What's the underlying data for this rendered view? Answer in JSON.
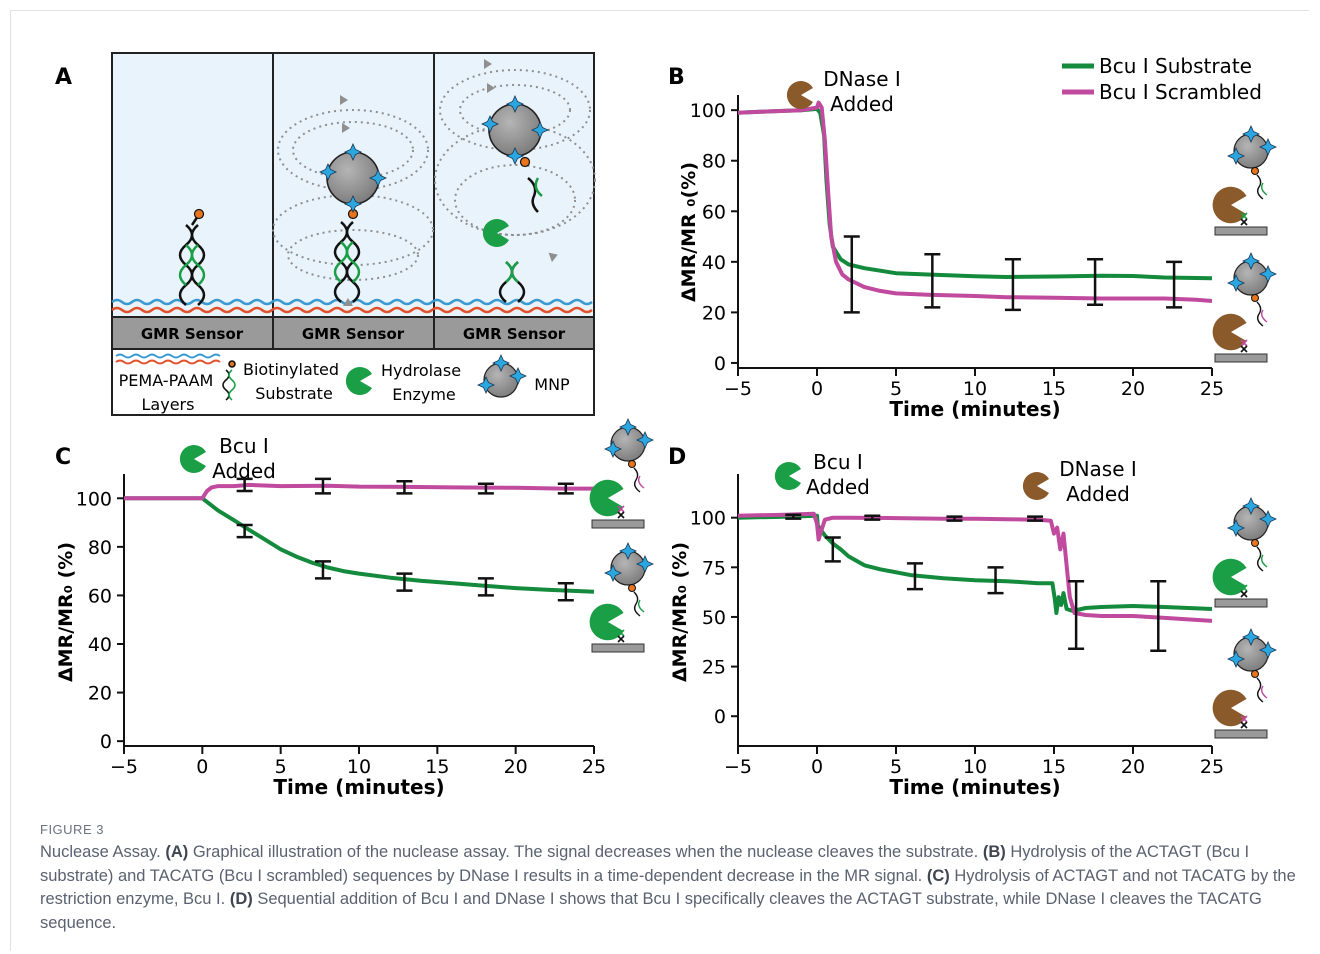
{
  "figure_label": "FIGURE 3",
  "caption": {
    "parts": [
      {
        "text": "Nuclease Assay. ",
        "bold": false
      },
      {
        "text": "(A)",
        "bold": true
      },
      {
        "text": " Graphical illustration of the nuclease assay. The signal decreases when the nuclease cleaves the substrate. ",
        "bold": false
      },
      {
        "text": "(B)",
        "bold": true
      },
      {
        "text": " Hydrolysis of the ACTAGT (Bcu I substrate) and TACATG (Bcu I scrambled) sequences by DNase I results in a time-dependent decrease in the MR signal. ",
        "bold": false
      },
      {
        "text": "(C)",
        "bold": true
      },
      {
        "text": " Hydrolysis of ACTAGT and not TACATG by the restriction enzyme, Bcu I. ",
        "bold": false
      },
      {
        "text": "(D)",
        "bold": true
      },
      {
        "text": " Sequential addition of Bcu I and DNase I shows that Bcu I specifically cleaves the ACTAGT substrate, while DNase I cleaves the TACATG sequence.",
        "bold": false
      }
    ]
  },
  "colors": {
    "substrate": "#138a3c",
    "scrambled": "#c04a9e",
    "dnase": "#8b5a2b",
    "bcu": "#1a9e46",
    "blue": "#2aa7e0",
    "orange": "#e8741e",
    "sensor": "#9a9a9a",
    "panel_bg": "#e8f3fc"
  },
  "panel_a": {
    "label": "A",
    "sensor_labels": [
      "GMR Sensor",
      "GMR Sensor",
      "GMR Sensor"
    ],
    "legend": {
      "layers": "PEMA-PAAM\nLayers",
      "substrate": "Biotinylated\nSubstrate",
      "enzyme": "Hydrolase\nEnzyme",
      "mnp": "MNP"
    },
    "icons": [
      "dna-strand-icon",
      "magnetic-nanoparticle-icon",
      "hydrolase-enzyme-icon",
      "field-line-icon"
    ]
  },
  "chart_data": [
    {
      "panel": "B",
      "type": "line",
      "xlabel": "Time (minutes)",
      "ylabel": "ΔMR/MR ₀(%)",
      "xlim": [
        -5,
        25
      ],
      "ylim": [
        -2,
        106
      ],
      "xticks": [
        -5,
        0,
        5,
        10,
        15,
        20,
        25
      ],
      "yticks": [
        0,
        20,
        40,
        60,
        80,
        100
      ],
      "legend": {
        "placement": "top-right",
        "entries": [
          "Bcu I Substrate",
          "Bcu I Scrambled"
        ]
      },
      "annotations": [
        {
          "text": "DNase I\nAdded",
          "x": 0
        }
      ],
      "series": [
        {
          "name": "Bcu I Substrate",
          "color_key": "substrate",
          "x": [
            -5,
            -3,
            -1,
            0,
            0.2,
            0.45,
            0.6,
            0.8,
            1,
            1.5,
            2,
            3,
            4,
            5,
            7,
            10,
            12,
            15,
            18,
            20,
            22,
            25
          ],
          "y": [
            99,
            99.5,
            100,
            100.5,
            99,
            90,
            72,
            55,
            46,
            41,
            39,
            37.5,
            36.5,
            35.5,
            35,
            34.3,
            34,
            34.2,
            34.5,
            34.4,
            33.8,
            33.5
          ]
        },
        {
          "name": "Bcu I Scrambled",
          "color_key": "scrambled",
          "x": [
            -5,
            -3,
            -1,
            0,
            0.1,
            0.3,
            0.5,
            0.7,
            0.9,
            1.2,
            1.6,
            2,
            3,
            4,
            5,
            7,
            10,
            12,
            15,
            18,
            20,
            22,
            24,
            25
          ],
          "y": [
            99,
            99.5,
            100,
            101,
            103,
            101,
            88,
            68,
            50,
            40,
            35,
            33,
            30,
            28.5,
            27.5,
            27,
            26.5,
            26,
            25.8,
            25.5,
            25.5,
            25.5,
            25,
            24.5
          ]
        }
      ],
      "error_bars": [
        {
          "x": 2.2,
          "low": 20,
          "high": 50
        },
        {
          "x": 7.3,
          "low": 22,
          "high": 43
        },
        {
          "x": 12.4,
          "low": 21,
          "high": 41
        },
        {
          "x": 17.6,
          "low": 23,
          "high": 41
        },
        {
          "x": 22.6,
          "low": 22,
          "high": 40
        }
      ]
    },
    {
      "panel": "C",
      "type": "line",
      "xlabel": "Time (minutes)",
      "ylabel": "ΔMR/MR₀ (%)",
      "xlim": [
        -5,
        25
      ],
      "ylim": [
        -2,
        110
      ],
      "xticks": [
        -5,
        0,
        5,
        10,
        15,
        20,
        25
      ],
      "yticks": [
        0,
        20,
        40,
        60,
        80,
        100
      ],
      "annotations": [
        {
          "text": "Bcu I\nAdded",
          "x": 0
        }
      ],
      "series": [
        {
          "name": "Bcu I Substrate",
          "color_key": "substrate",
          "x": [
            -5,
            -2,
            0,
            1,
            2,
            3,
            4,
            5,
            6,
            7,
            8,
            9,
            10,
            12,
            14,
            16,
            18,
            20,
            22,
            25
          ],
          "y": [
            100,
            100,
            100,
            95,
            91,
            87,
            83,
            79,
            76,
            73.5,
            71.5,
            70,
            69,
            67.3,
            66,
            65,
            64,
            63,
            62.3,
            61.5
          ]
        },
        {
          "name": "Bcu I Scrambled",
          "color_key": "scrambled",
          "x": [
            -5,
            -2,
            0,
            0.3,
            0.6,
            1,
            2,
            3,
            5,
            8,
            10,
            13,
            16,
            18,
            20,
            23,
            25
          ],
          "y": [
            100,
            100,
            100,
            103,
            104.5,
            105,
            105,
            105.5,
            105,
            105.2,
            104.8,
            104.7,
            104.5,
            104.4,
            104.3,
            104,
            104
          ]
        }
      ],
      "error_bars": [
        {
          "x": 2.7,
          "low": 84,
          "high": 89
        },
        {
          "x": 7.7,
          "low": 67,
          "high": 74
        },
        {
          "x": 12.9,
          "low": 62,
          "high": 69
        },
        {
          "x": 18.1,
          "low": 60,
          "high": 67
        },
        {
          "x": 23.2,
          "low": 58,
          "high": 65
        },
        {
          "x": 2.7,
          "low": 103,
          "high": 108
        },
        {
          "x": 7.7,
          "low": 102,
          "high": 108
        },
        {
          "x": 12.9,
          "low": 102,
          "high": 107
        },
        {
          "x": 18.1,
          "low": 102,
          "high": 106
        },
        {
          "x": 23.2,
          "low": 102,
          "high": 106
        }
      ]
    },
    {
      "panel": "D",
      "type": "line",
      "xlabel": "Time (minutes)",
      "ylabel": "ΔMR/MR₀ (%)",
      "xlim": [
        -5,
        25
      ],
      "ylim": [
        -15,
        122
      ],
      "xticks": [
        -5,
        0,
        5,
        10,
        15,
        20,
        25
      ],
      "yticks": [
        0,
        25,
        50,
        75,
        100
      ],
      "annotations": [
        {
          "text": "Bcu I\nAdded",
          "x": 0
        },
        {
          "text": "DNase I\nAdded",
          "x": 15
        }
      ],
      "series": [
        {
          "name": "Bcu I Substrate",
          "color_key": "substrate",
          "x": [
            -5,
            -2,
            0,
            0.05,
            0.5,
            1,
            1.5,
            2,
            3,
            4,
            6,
            8,
            10,
            12,
            14,
            14.9,
            15.05,
            15.15,
            15.3,
            15.45,
            15.6,
            15.8,
            16.2,
            17,
            18,
            20,
            22,
            25
          ],
          "y": [
            100,
            100.5,
            101,
            96,
            91,
            87,
            84,
            80.5,
            76,
            74,
            71,
            69.5,
            68.5,
            68,
            67,
            67,
            59,
            52,
            60,
            56,
            62,
            54,
            53,
            54.5,
            55,
            55.5,
            55,
            54
          ]
        },
        {
          "name": "Bcu I Scrambled",
          "color_key": "scrambled",
          "x": [
            -5,
            -2,
            -0.2,
            0,
            0.1,
            0.25,
            0.5,
            1,
            2,
            5,
            8,
            10,
            12,
            14,
            14.8,
            15,
            15.2,
            15.4,
            15.6,
            15.8,
            16,
            16.3,
            17,
            18,
            20,
            22,
            24,
            25
          ],
          "y": [
            101,
            101.5,
            102,
            97,
            89,
            93,
            99,
            100,
            100,
            99.8,
            99.5,
            99.5,
            99.2,
            99,
            98.5,
            92,
            95,
            84,
            92,
            76,
            60,
            52,
            51,
            50.5,
            50.5,
            49.5,
            48.5,
            48
          ]
        }
      ],
      "error_bars": [
        {
          "x": 1,
          "low": 78,
          "high": 90
        },
        {
          "x": 6.2,
          "low": 64,
          "high": 77
        },
        {
          "x": 11.3,
          "low": 62,
          "high": 75
        },
        {
          "x": 16.4,
          "low": 34,
          "high": 68
        },
        {
          "x": 21.6,
          "low": 33,
          "high": 68
        },
        {
          "x": -1.5,
          "low": 99.5,
          "high": 101.5
        },
        {
          "x": 3.5,
          "low": 99,
          "high": 101
        },
        {
          "x": 8.7,
          "low": 98.5,
          "high": 100.5
        },
        {
          "x": 13.8,
          "low": 98.5,
          "high": 100.5
        }
      ]
    }
  ]
}
